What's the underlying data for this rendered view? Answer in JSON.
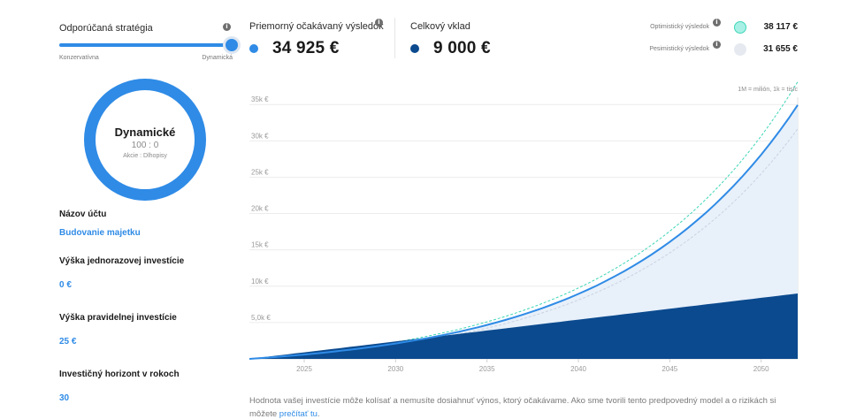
{
  "strategy": {
    "label": "Odporúčaná stratégia",
    "min_label": "Konzervatívna",
    "max_label": "Dynamická",
    "level": 1.0
  },
  "expected": {
    "label": "Priemorný očakávaný výsledok",
    "value": "34 925 €",
    "color": "#2f8be6"
  },
  "deposit": {
    "label": "Celkový vklad",
    "value": "9 000 €",
    "color": "#0b4a8e"
  },
  "optimistic": {
    "label": "Optimistický výsledok",
    "value": "38 117 €",
    "color": "#a8f0e6"
  },
  "pessimistic": {
    "label": "Pesimistický výsledok",
    "value": "31 655 €",
    "color": "#e6eaf0"
  },
  "donut": {
    "title": "Dynamické",
    "ratio": "100 : 0",
    "subtitle": "Akcie : Dlhopisy",
    "color": "#2f8be6"
  },
  "fields": {
    "account_name_label": "Názov účtu",
    "account_name_value": "Budovanie majetku",
    "lump_sum_label": "Výška jednorazovej investície",
    "lump_sum_value": "0  €",
    "regular_label": "Výška pravidelnej investície",
    "regular_value": "25  €",
    "horizon_label": "Investičný horizont v rokoch",
    "horizon_value": "30"
  },
  "chart_note": "1M = milión, 1k = tisíc",
  "disclaimer": {
    "text": "Hodnota vašej investície môže kolísať a nemusíte dosiahnuť výnos, ktorý očakávame. Ako sme tvorili tento predpovedný model a o rizikách si môžete ",
    "link": "prečítať tu",
    "end": "."
  },
  "chart_data": {
    "type": "area",
    "title": "",
    "xlabel": "",
    "ylabel": "",
    "x_range": [
      2022,
      2052
    ],
    "ylim": [
      0,
      36000
    ],
    "y_ticks": [
      5000,
      10000,
      15000,
      20000,
      25000,
      30000,
      35000
    ],
    "y_tick_labels": [
      "5,0k €",
      "10k €",
      "15k €",
      "20k €",
      "25k €",
      "30k €",
      "35k €"
    ],
    "x_ticks": [
      2025,
      2030,
      2035,
      2040,
      2045,
      2050
    ],
    "x_tick_labels": [
      "2025",
      "2030",
      "2035",
      "2040",
      "2045",
      "2050"
    ],
    "series": [
      {
        "name": "Celkový vklad",
        "end_value": 9000,
        "color": "#0b4a8e",
        "style": "fill"
      },
      {
        "name": "Priemorný očakávaný výsledok",
        "end_value": 34925,
        "color": "#2f8be6",
        "style": "line-fill"
      },
      {
        "name": "Optimistický výsledok",
        "end_value": 38117,
        "color": "#3fd6b8",
        "style": "dashed"
      },
      {
        "name": "Pesimistický výsledok",
        "end_value": 31655,
        "color": "#c9d3e0",
        "style": "dashed"
      }
    ]
  }
}
